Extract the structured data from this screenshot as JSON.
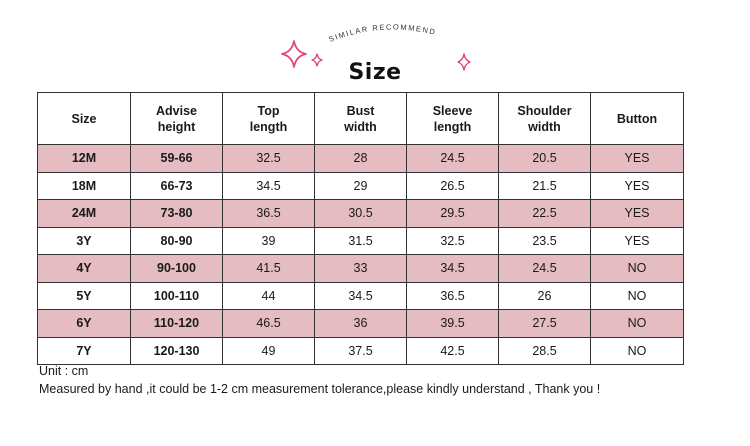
{
  "header": {
    "arc_text": "SIMILAR RECOMMEND",
    "title": "Size",
    "accent_color": "#e0457b"
  },
  "table": {
    "headers": [
      [
        "Size"
      ],
      [
        "Advise",
        "height"
      ],
      [
        "Top",
        "length"
      ],
      [
        "Bust",
        "width"
      ],
      [
        "Sleeve",
        "length"
      ],
      [
        "Shoulder",
        "width"
      ],
      [
        "Button"
      ]
    ],
    "rows": [
      [
        "12M",
        "59-66",
        "32.5",
        "28",
        "24.5",
        "20.5",
        "YES"
      ],
      [
        "18M",
        "66-73",
        "34.5",
        "29",
        "26.5",
        "21.5",
        "YES"
      ],
      [
        "24M",
        "73-80",
        "36.5",
        "30.5",
        "29.5",
        "22.5",
        "YES"
      ],
      [
        "3Y",
        "80-90",
        "39",
        "31.5",
        "32.5",
        "23.5",
        "YES"
      ],
      [
        "4Y",
        "90-100",
        "41.5",
        "33",
        "34.5",
        "24.5",
        "NO"
      ],
      [
        "5Y",
        "100-110",
        "44",
        "34.5",
        "36.5",
        "26",
        "NO"
      ],
      [
        "6Y",
        "110-120",
        "46.5",
        "36",
        "39.5",
        "27.5",
        "NO"
      ],
      [
        "7Y",
        "120-130",
        "49",
        "37.5",
        "42.5",
        "28.5",
        "NO"
      ]
    ],
    "pink_row_color": "#e5bcc1"
  },
  "footer": {
    "unit": "Unit : cm",
    "note": "Measured by hand ,it could be 1-2 cm measurement tolerance,please kindly understand , Thank you !"
  }
}
